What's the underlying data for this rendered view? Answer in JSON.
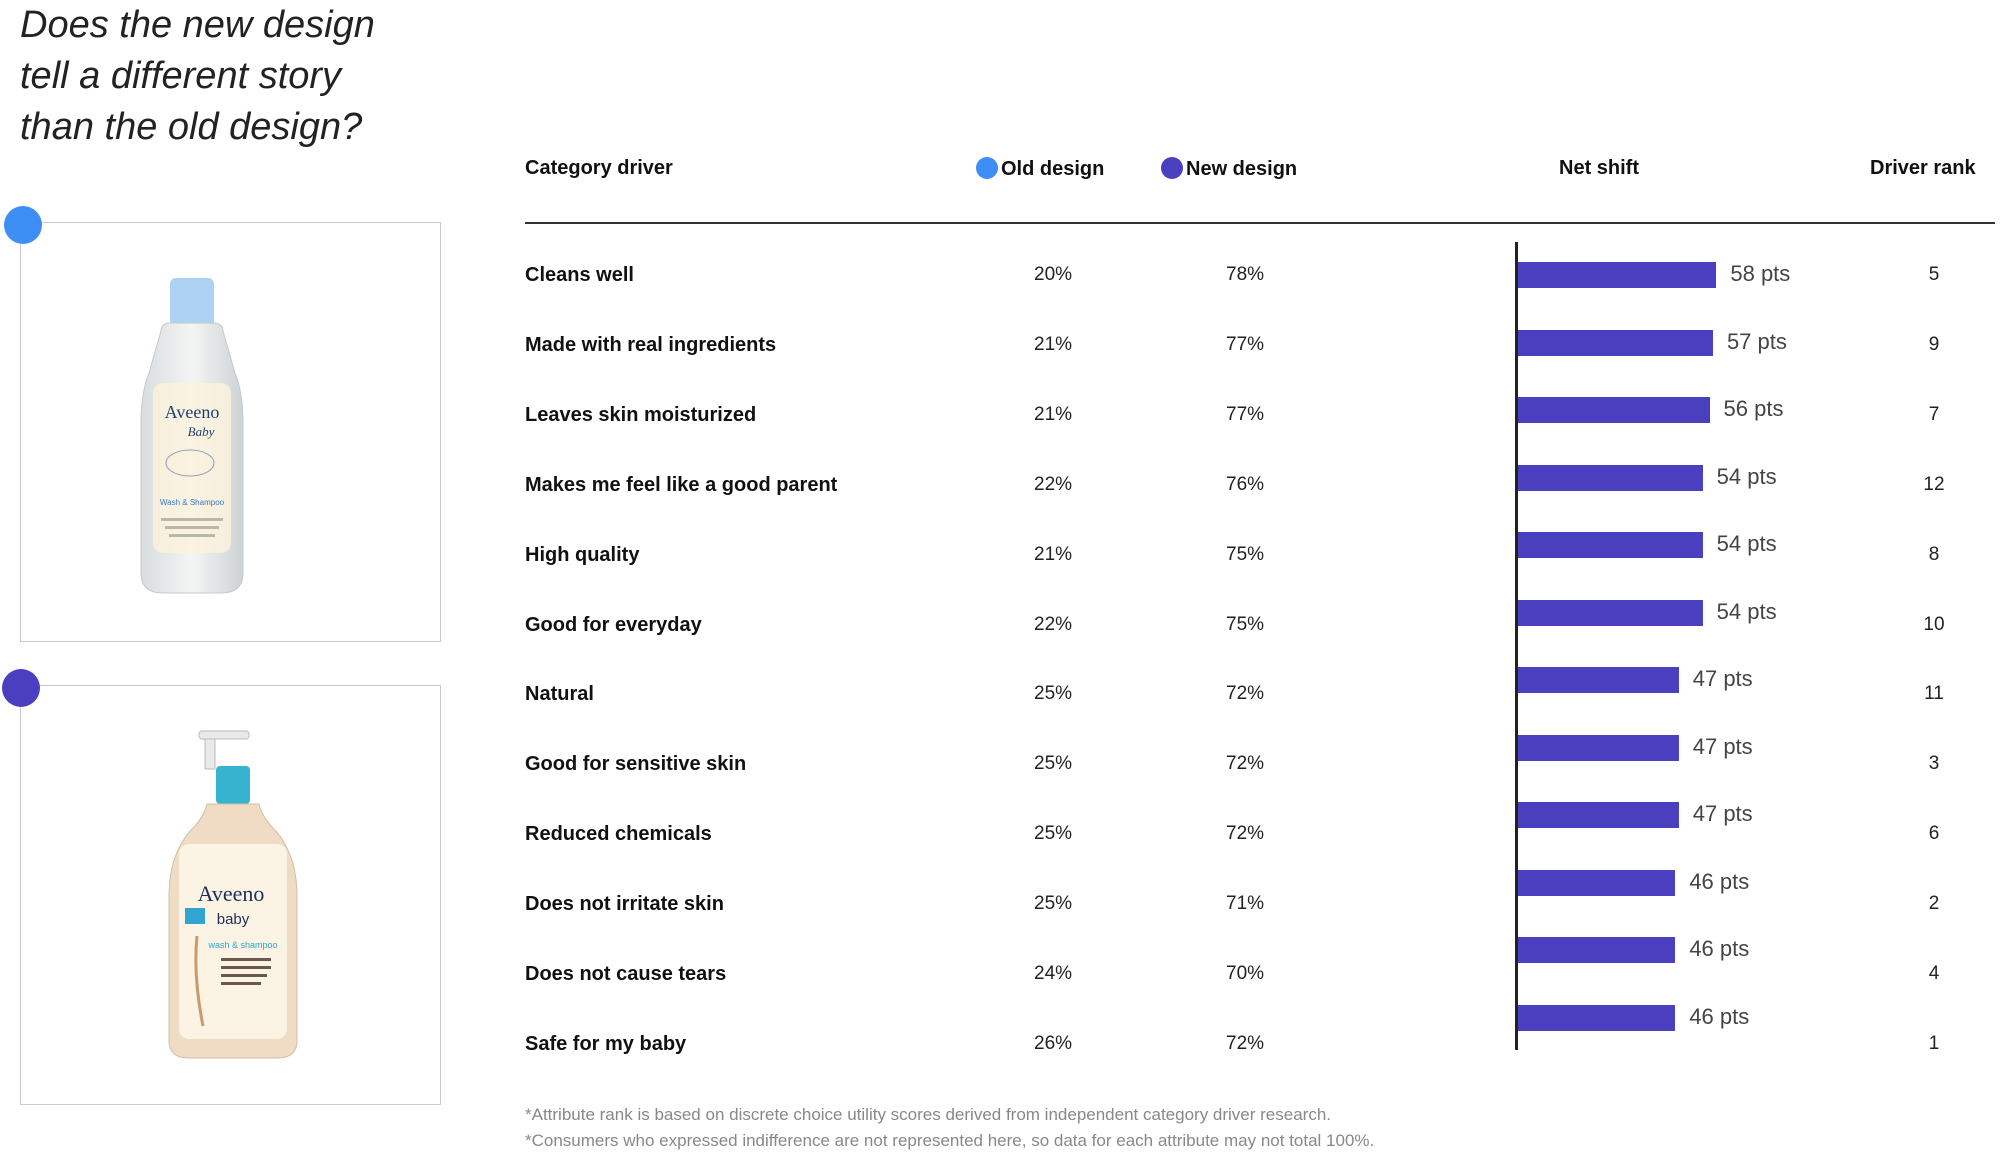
{
  "question": {
    "line1": "Does the new design",
    "line2": "tell a different story",
    "line3": "than the old design?"
  },
  "colors": {
    "old": "#3d8ff5",
    "new": "#4a3fbf"
  },
  "images": {
    "old_icon": "bottle-old-design-icon",
    "new_icon": "bottle-new-design-icon",
    "old_brand": "Aveeno",
    "old_sub": "Baby",
    "old_product": "Wash & Shampoo",
    "new_brand": "Aveeno",
    "new_sub": "baby",
    "new_product": "wash & shampoo"
  },
  "headers": {
    "driver": "Category driver",
    "old": "Old design",
    "new": "New design",
    "shift": "Net shift",
    "rank": "Driver rank"
  },
  "chart_data": {
    "type": "table",
    "columns": [
      "Category driver",
      "Old design",
      "New design",
      "Net shift",
      "Driver rank"
    ],
    "rows": [
      {
        "driver": "Cleans well",
        "old": "20%",
        "new": "78%",
        "shift": 58,
        "shift_label": "58 pts",
        "rank": "5"
      },
      {
        "driver": "Made with real ingredients",
        "old": "21%",
        "new": "77%",
        "shift": 57,
        "shift_label": "57 pts",
        "rank": "9"
      },
      {
        "driver": "Leaves skin moisturized",
        "old": "21%",
        "new": "77%",
        "shift": 56,
        "shift_label": "56 pts",
        "rank": "7"
      },
      {
        "driver": "Makes me feel like a good parent",
        "old": "22%",
        "new": "76%",
        "shift": 54,
        "shift_label": "54 pts",
        "rank": "12"
      },
      {
        "driver": "High quality",
        "old": "21%",
        "new": "75%",
        "shift": 54,
        "shift_label": "54 pts",
        "rank": "8"
      },
      {
        "driver": "Good for everyday",
        "old": "22%",
        "new": "75%",
        "shift": 54,
        "shift_label": "54 pts",
        "rank": "10"
      },
      {
        "driver": "Natural",
        "old": "25%",
        "new": "72%",
        "shift": 47,
        "shift_label": "47 pts",
        "rank": "11"
      },
      {
        "driver": "Good for sensitive skin",
        "old": "25%",
        "new": "72%",
        "shift": 47,
        "shift_label": "47 pts",
        "rank": "3"
      },
      {
        "driver": "Reduced chemicals",
        "old": "25%",
        "new": "72%",
        "shift": 47,
        "shift_label": "47 pts",
        "rank": "6"
      },
      {
        "driver": "Does not irritate skin",
        "old": "25%",
        "new": "71%",
        "shift": 46,
        "shift_label": "46 pts",
        "rank": "2"
      },
      {
        "driver": "Does not cause tears",
        "old": "24%",
        "new": "70%",
        "shift": 46,
        "shift_label": "46 pts",
        "rank": "4"
      },
      {
        "driver": "Safe for my baby",
        "old": "26%",
        "new": "72%",
        "shift": 46,
        "shift_label": "46 pts",
        "rank": "1"
      }
    ]
  },
  "footnotes": {
    "line1": "*Attribute rank is based on discrete choice utility scores derived from independent category driver research.",
    "line2": "*Consumers who expressed indifference are not represented here, so data for each attribute may not total 100%."
  }
}
